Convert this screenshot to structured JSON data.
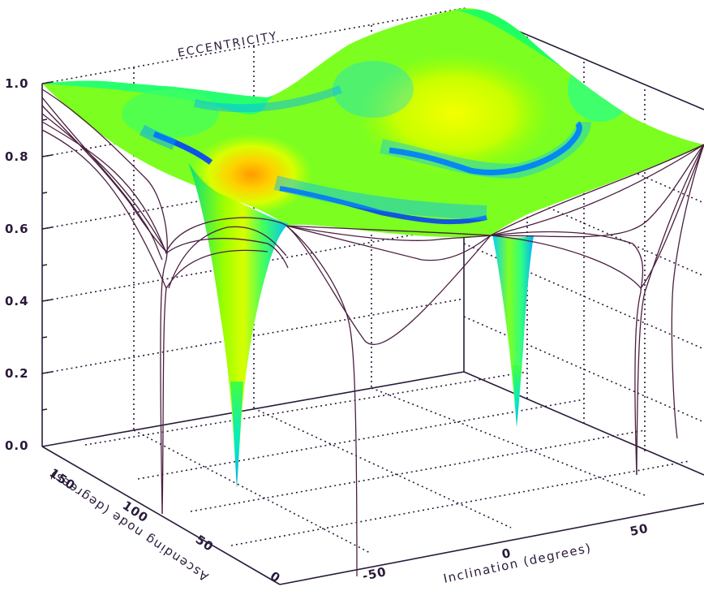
{
  "chart_data": {
    "type": "surface",
    "title": "ECCENTRICITY",
    "zlabel": "ECCENTRICITY",
    "xlabel": "Inclination (degrees)",
    "ylabel": "Ascending node (degrees)",
    "zlim": [
      0,
      1
    ],
    "xlim": [
      -90,
      90
    ],
    "ylim": [
      0,
      180
    ],
    "z_ticks": [
      "0.0",
      "0.2",
      "0.4",
      "0.6",
      "0.8",
      "1.0"
    ],
    "x_ticks": [
      "-50",
      "0",
      "50"
    ],
    "y_ticks": [
      "0",
      "50",
      "100",
      "150"
    ],
    "grid": true,
    "colormap": [
      "#0000ff",
      "#00c8ff",
      "#00ff80",
      "#c8ff00",
      "#ffd000",
      "#ff9000"
    ],
    "surface_samples": [
      {
        "inclination": -90,
        "node": 180,
        "e": 1.0
      },
      {
        "inclination": -45,
        "node": 170,
        "e": 0.85
      },
      {
        "inclination": 0,
        "node": 160,
        "e": 0.9
      },
      {
        "inclination": 45,
        "node": 120,
        "e": 0.85
      },
      {
        "inclination": 90,
        "node": 90,
        "e": 0.9
      },
      {
        "inclination": -30,
        "node": 45,
        "e": 0.05
      },
      {
        "inclination": 30,
        "node": 100,
        "e": 0.1
      }
    ]
  }
}
